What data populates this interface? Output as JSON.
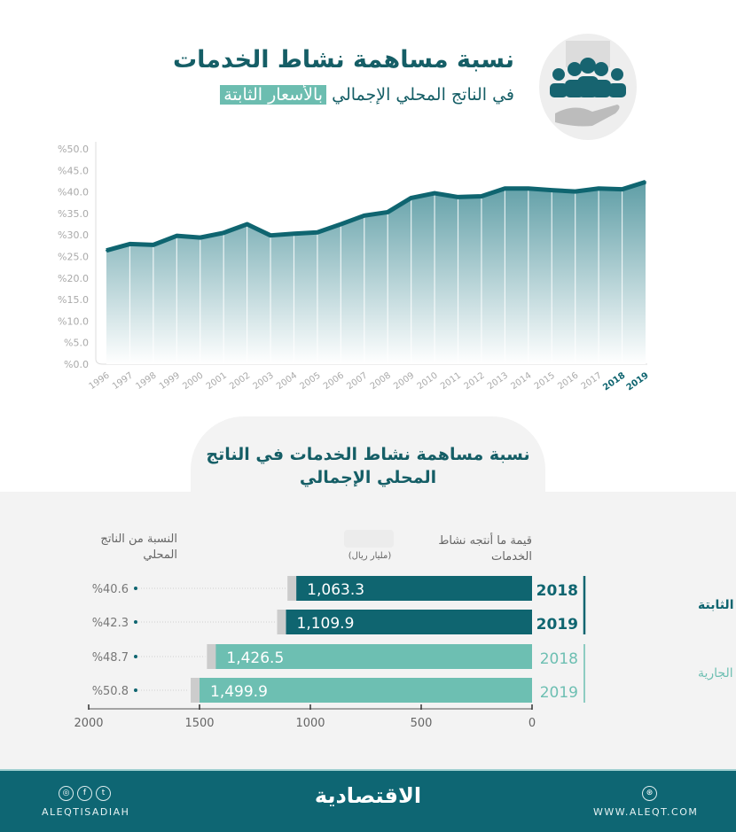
{
  "header": {
    "title": "نسبة مساهمة نشاط الخدمات",
    "subtitle_prefix": "في الناتج المحلي الإجمالي",
    "subtitle_highlight": "بالأسعار الثابتة"
  },
  "colors": {
    "dark_teal": "#0f6570",
    "light_teal": "#6dbfb2",
    "gray_stub": "#cccccc",
    "title": "#155e66",
    "footer": "#0e6673"
  },
  "chart_data": [
    {
      "type": "area",
      "x": [
        1996,
        1997,
        1998,
        1999,
        2000,
        2001,
        2002,
        2003,
        2004,
        2005,
        2006,
        2007,
        2008,
        2009,
        2010,
        2011,
        2012,
        2013,
        2014,
        2015,
        2016,
        2017,
        2018,
        2019
      ],
      "values": [
        26.4,
        27.9,
        27.7,
        29.8,
        29.4,
        30.5,
        32.5,
        29.9,
        30.3,
        30.6,
        32.5,
        34.5,
        35.3,
        38.6,
        39.7,
        38.8,
        39.0,
        40.8,
        40.8,
        40.4,
        40.1,
        40.8,
        40.6,
        42.3
      ],
      "y_ticks": [
        "%0.0",
        "%5.0",
        "%10.0",
        "%15.0",
        "%20.0",
        "%25.0",
        "%30.0",
        "%35.0",
        "%40.0",
        "%45.0",
        "%50.0"
      ],
      "ylim": [
        0,
        50
      ],
      "highlighted_years": [
        2018,
        2019
      ],
      "grid": false
    },
    {
      "type": "bar",
      "orientation": "horizontal",
      "title": "نسبة مساهمة نشاط الخدمات في الناتج المحلي الإجمالي",
      "value_header": "قيمة ما أنتجه نشاط الخدمات",
      "unit": "(مليار ريال)",
      "share_header": "النسبة من الناتج المحلي",
      "groups": [
        {
          "name": "بالأسعار الثابتة",
          "rows": [
            {
              "year": "2018",
              "value": 1063.3,
              "label": "1,063.3",
              "share": "%40.6"
            },
            {
              "year": "2019",
              "value": 1109.9,
              "label": "1,109.9",
              "share": "%42.3"
            }
          ]
        },
        {
          "name": "بالأسعار الجارية",
          "rows": [
            {
              "year": "2018",
              "value": 1426.5,
              "label": "1,426.5",
              "share": "%48.7"
            },
            {
              "year": "2019",
              "value": 1499.9,
              "label": "1,499.9",
              "share": "%50.8"
            }
          ]
        }
      ],
      "x_ticks": [
        "2000",
        "1500",
        "1000",
        "500",
        "0"
      ],
      "xlim": [
        0,
        2000
      ]
    }
  ],
  "footer": {
    "handle": "ALEQTISADIAH",
    "logo": "الاقتصادية",
    "website": "WWW.ALEQT.COM",
    "social_icons": [
      "instagram-icon",
      "facebook-icon",
      "twitter-icon"
    ]
  }
}
